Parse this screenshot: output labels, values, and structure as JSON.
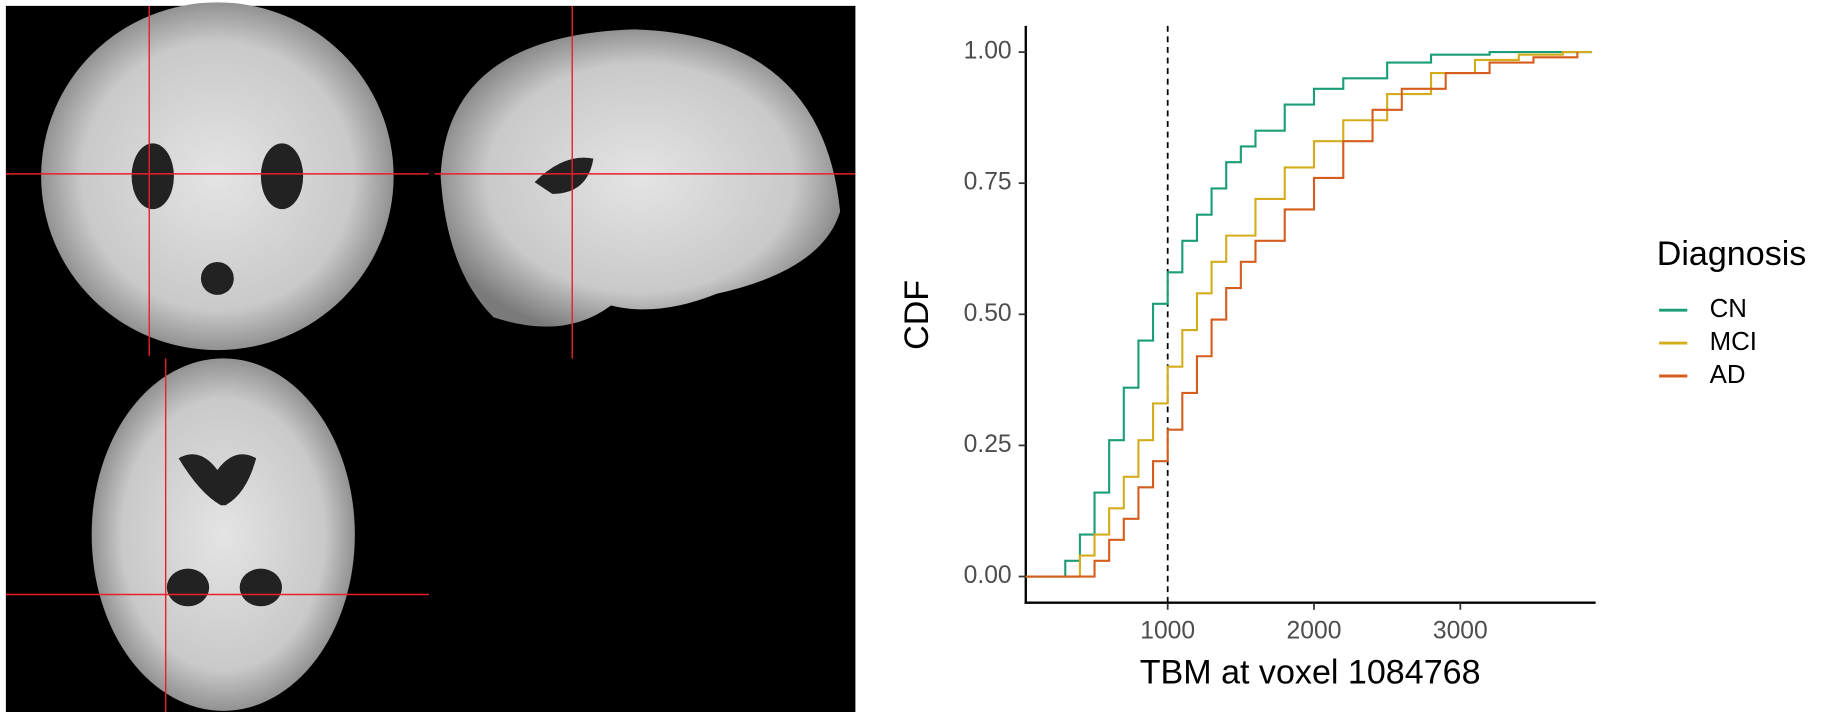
{
  "chart_data": {
    "type": "line",
    "drawstyle": "steps",
    "xlabel": "TBM at voxel 1084768",
    "ylabel": "CDF",
    "legend_title": "Diagnosis",
    "legend": "right",
    "xlim": [
      30,
      3925
    ],
    "ylim": [
      -0.05,
      1.05
    ],
    "xticks": [
      1000,
      2000,
      3000
    ],
    "yticks": [
      {
        "value": 0,
        "label": "0.00"
      },
      {
        "value": 0.25,
        "label": "0.25"
      },
      {
        "value": 0.5,
        "label": "0.50"
      },
      {
        "value": 0.75,
        "label": "0.75"
      },
      {
        "value": 1,
        "label": "1.00"
      }
    ],
    "vline": 1000,
    "series": [
      {
        "name": "CN",
        "color": "#1b9e77",
        "x": [
          30,
          200,
          300,
          400,
          500,
          600,
          700,
          800,
          900,
          1000,
          1100,
          1200,
          1300,
          1400,
          1500,
          1600,
          1800,
          2000,
          2200,
          2500,
          2800,
          3200,
          3900
        ],
        "values": [
          0,
          0,
          0.03,
          0.08,
          0.16,
          0.26,
          0.36,
          0.45,
          0.52,
          0.58,
          0.64,
          0.69,
          0.74,
          0.79,
          0.82,
          0.85,
          0.9,
          0.93,
          0.95,
          0.98,
          0.995,
          1,
          1
        ]
      },
      {
        "name": "MCI",
        "color": "#d4ad1c",
        "x": [
          30,
          250,
          400,
          500,
          600,
          700,
          800,
          900,
          1000,
          1100,
          1200,
          1300,
          1400,
          1600,
          1800,
          2000,
          2200,
          2500,
          2800,
          3100,
          3400,
          3700,
          3900
        ],
        "values": [
          0,
          0,
          0.04,
          0.08,
          0.13,
          0.19,
          0.26,
          0.33,
          0.4,
          0.47,
          0.54,
          0.6,
          0.65,
          0.72,
          0.78,
          0.83,
          0.87,
          0.92,
          0.96,
          0.985,
          0.995,
          1,
          1
        ]
      },
      {
        "name": "AD",
        "color": "#d55e1e",
        "x": [
          30,
          350,
          500,
          600,
          700,
          800,
          900,
          1000,
          1100,
          1200,
          1300,
          1400,
          1500,
          1600,
          1800,
          2000,
          2200,
          2400,
          2600,
          2900,
          3200,
          3500,
          3800
        ],
        "values": [
          0,
          0,
          0.03,
          0.07,
          0.11,
          0.17,
          0.22,
          0.28,
          0.35,
          0.42,
          0.49,
          0.55,
          0.6,
          0.64,
          0.7,
          0.76,
          0.83,
          0.89,
          0.93,
          0.96,
          0.98,
          0.99,
          1
        ]
      }
    ]
  }
}
